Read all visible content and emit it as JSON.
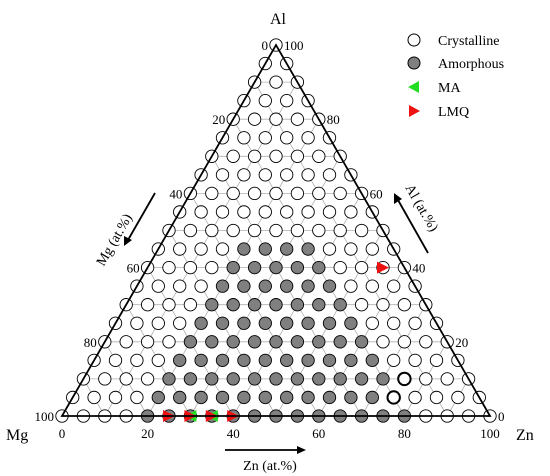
{
  "chart_data": {
    "type": "scatter",
    "corners": {
      "top": "Al",
      "left": "Mg",
      "right": "Zn"
    },
    "axis_labels": {
      "mg": "Mg (at.%)",
      "al": "Al (at.%)",
      "zn": "Zn (at.%)"
    },
    "ticks": {
      "zn_bottom": [
        "0",
        "20",
        "40",
        "60",
        "80",
        "100"
      ],
      "al_right": [
        "0",
        "20",
        "40",
        "60",
        "80",
        "100"
      ],
      "mg_left": [
        "0",
        "20",
        "40",
        "60",
        "80",
        "100"
      ]
    },
    "grid_step": 5,
    "grid_lines": 10,
    "amorphous_region": {
      "description_units": "at.%",
      "al_max": 45,
      "zn_min": 20,
      "zn_max_at_al0": 80
    },
    "series": [
      {
        "name": "Crystalline",
        "marker": "open-circle",
        "color": "#ffffff"
      },
      {
        "name": "Amorphous",
        "marker": "filled-circle",
        "color": "#808080"
      },
      {
        "name": "MA",
        "marker": "triangle-left",
        "color": "#22dd22",
        "points": [
          {
            "zn": 30,
            "al": 0
          },
          {
            "zn": 35,
            "al": 0
          }
        ]
      },
      {
        "name": "LMQ",
        "marker": "triangle-right",
        "color": "#ee1111",
        "points": [
          {
            "zn": 25,
            "al": 0
          },
          {
            "zn": 30,
            "al": 0
          },
          {
            "zn": 35,
            "al": 0
          },
          {
            "zn": 40,
            "al": 0
          },
          {
            "zn": 55,
            "al": 40
          }
        ]
      }
    ],
    "highlighted_crystalline": [
      {
        "zn": 75,
        "al": 10
      },
      {
        "zn": 75,
        "al": 5
      }
    ]
  }
}
